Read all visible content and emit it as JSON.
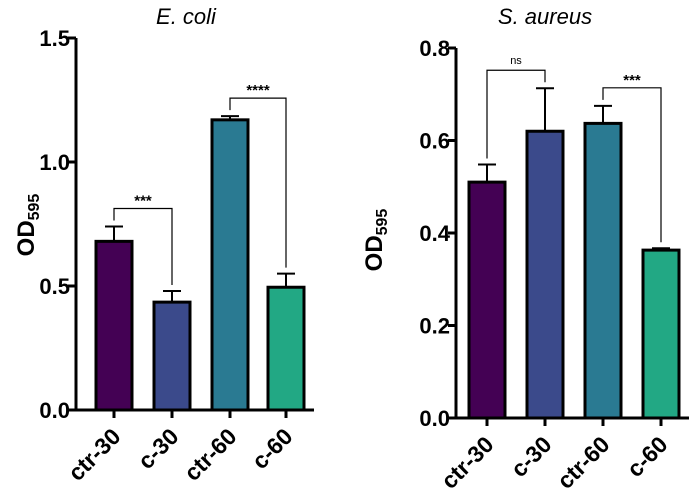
{
  "chart_data": [
    {
      "type": "bar",
      "title": "E. coli",
      "ylabel": "OD",
      "ylabel_sub": "595",
      "xlabel": "",
      "ylim": [
        0,
        1.5
      ],
      "yticks": [
        "0.0",
        "0.5",
        "1.0",
        "1.5"
      ],
      "categories": [
        "ctr-30",
        "c-30",
        "ctr-60",
        "c-60"
      ],
      "values": [
        0.68,
        0.435,
        1.17,
        0.495
      ],
      "errors": [
        0.06,
        0.045,
        0.015,
        0.055
      ],
      "colors": [
        "#440154",
        "#3b4a8b",
        "#2a7a92",
        "#22a884"
      ],
      "significance": [
        {
          "from": 0,
          "to": 1,
          "label": "***"
        },
        {
          "from": 2,
          "to": 3,
          "label": "****"
        }
      ]
    },
    {
      "type": "bar",
      "title": "S. aureus",
      "ylabel": "OD",
      "ylabel_sub": "595",
      "xlabel": "",
      "ylim": [
        0,
        0.8
      ],
      "yticks": [
        "0.0",
        "0.2",
        "0.4",
        "0.6",
        "0.8"
      ],
      "categories": [
        "ctr-30",
        "c-30",
        "ctr-60",
        "c-60"
      ],
      "values": [
        0.51,
        0.62,
        0.637,
        0.363
      ],
      "errors": [
        0.038,
        0.093,
        0.038,
        0.004
      ],
      "colors": [
        "#440154",
        "#3b4a8b",
        "#2a7a92",
        "#22a884"
      ],
      "significance": [
        {
          "from": 0,
          "to": 1,
          "label": "ns"
        },
        {
          "from": 2,
          "to": 3,
          "label": "***"
        }
      ]
    }
  ]
}
